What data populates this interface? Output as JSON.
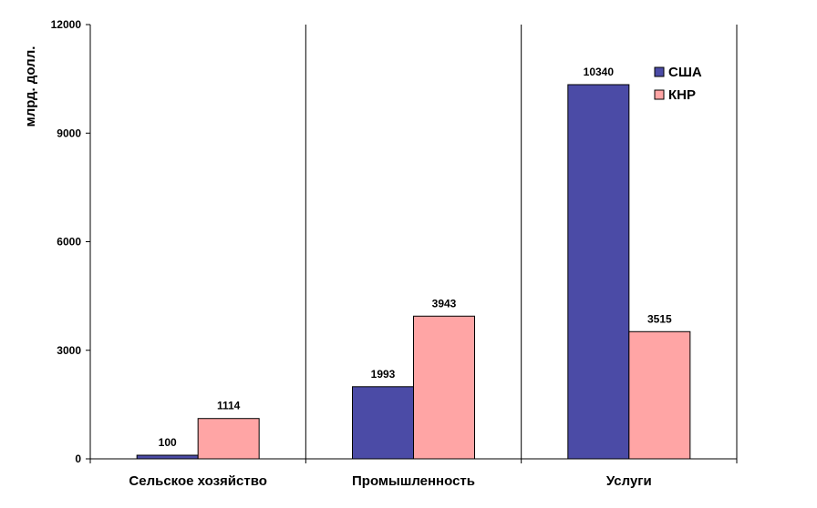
{
  "chart_data": {
    "type": "bar",
    "categories": [
      "Сельское хозяйство",
      "Промышленность",
      "Услуги"
    ],
    "series": [
      {
        "name": "США",
        "values": [
          100,
          1993,
          10340
        ],
        "color": "#4b4ba6"
      },
      {
        "name": "КНР",
        "values": [
          1114,
          3943,
          3515
        ],
        "color": "#ffa5a5"
      }
    ],
    "ylabel": "млрд. долл.",
    "ylim": [
      0,
      12000
    ],
    "yticks": [
      0,
      3000,
      6000,
      9000,
      12000
    ],
    "grid": false,
    "legend_position": "top-right"
  }
}
